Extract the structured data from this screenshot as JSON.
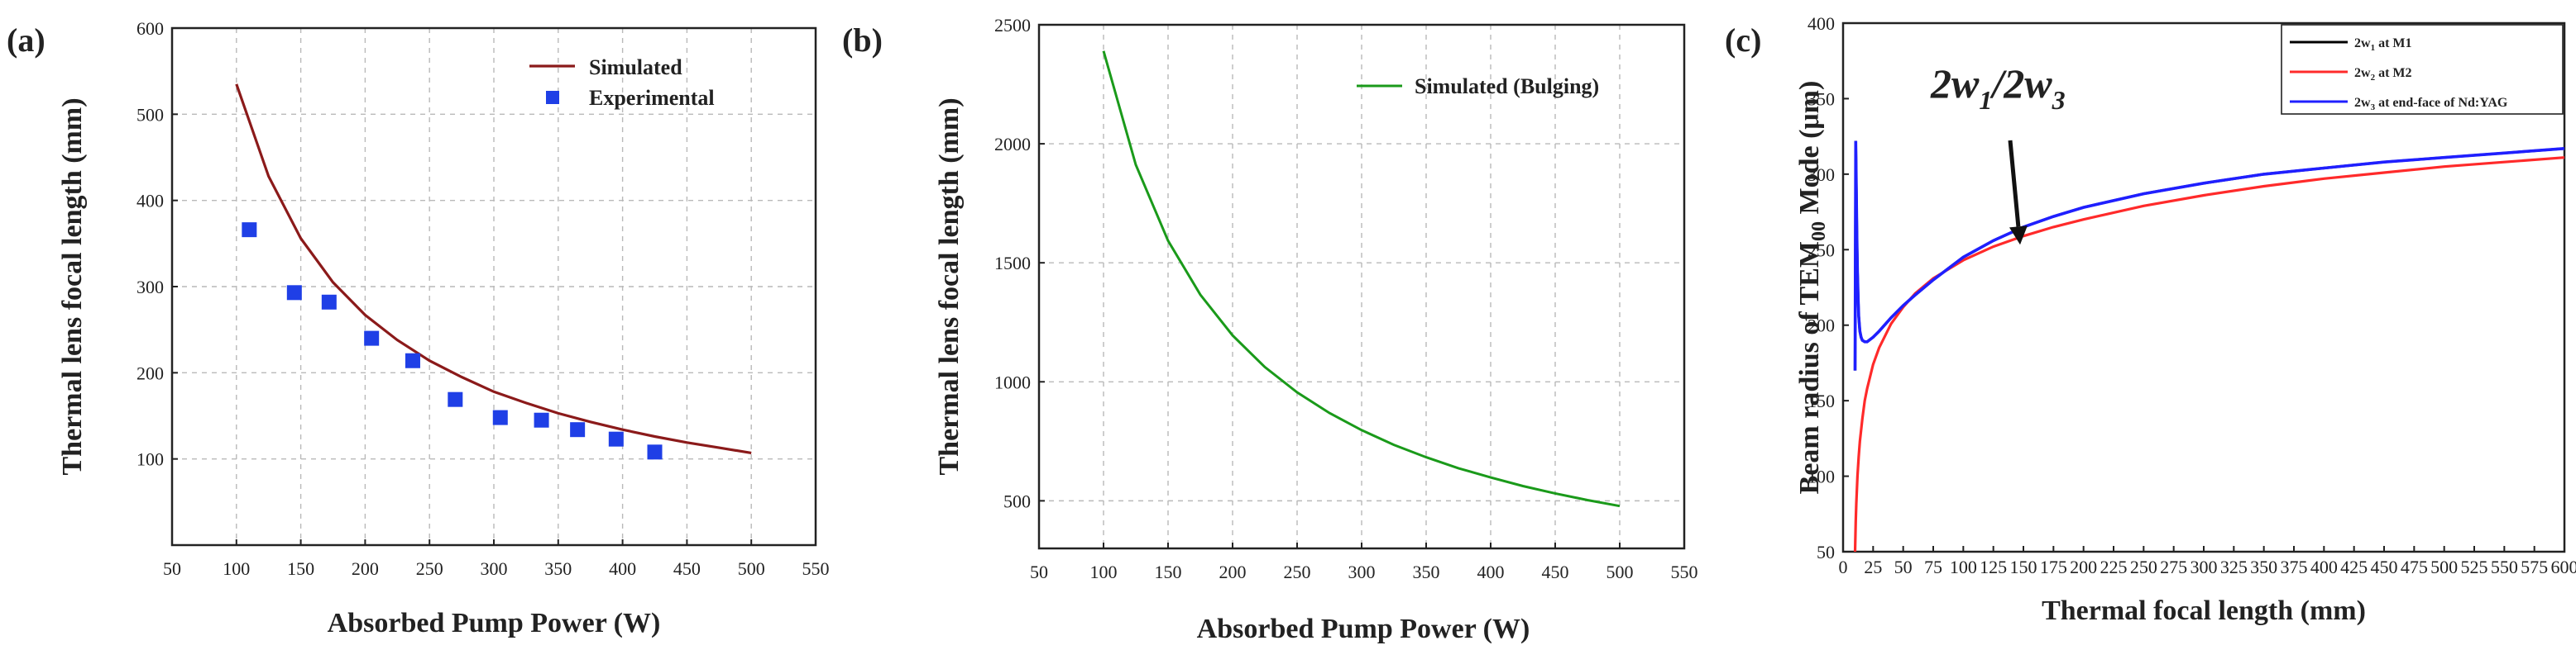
{
  "chart_data": [
    {
      "type": "line",
      "panel_label": "(a)",
      "xlabel": "Absorbed Pump Power (W)",
      "ylabel": "Thermal lens focal length (mm)",
      "xlim": [
        50,
        550
      ],
      "ylim": [
        0,
        600
      ],
      "xticks": [
        "50",
        "100",
        "150",
        "200",
        "250",
        "300",
        "350",
        "400",
        "450",
        "500",
        "550"
      ],
      "yticks": [
        "100",
        "200",
        "300",
        "400",
        "500",
        "600"
      ],
      "grid": true,
      "legend_position": "top-right",
      "series": [
        {
          "name": "Simulated",
          "kind": "line",
          "color": "#8b1a1a",
          "x": [
            100,
            125,
            150,
            175,
            200,
            225,
            250,
            275,
            300,
            325,
            350,
            375,
            400,
            425,
            450,
            475,
            500
          ],
          "y": [
            535,
            428,
            356,
            305,
            267,
            238,
            214,
            195,
            178,
            165,
            153,
            143,
            134,
            126,
            119,
            113,
            107
          ]
        },
        {
          "name": "Experimental",
          "kind": "scatter",
          "color": "#1f3fe6",
          "marker": "square",
          "x": [
            110,
            145,
            172,
            205,
            237,
            270,
            305,
            337,
            365,
            395,
            425
          ],
          "y": [
            366,
            293,
            282,
            240,
            214,
            169,
            148,
            145,
            134,
            123,
            108
          ]
        }
      ]
    },
    {
      "type": "line",
      "panel_label": "(b)",
      "xlabel": "Absorbed Pump Power (W)",
      "ylabel": "Thermal lens focal length (mm)",
      "xlim": [
        50,
        550
      ],
      "ylim": [
        300,
        2500
      ],
      "xticks": [
        "50",
        "100",
        "150",
        "200",
        "250",
        "300",
        "350",
        "400",
        "450",
        "500",
        "550"
      ],
      "yticks": [
        "500",
        "1000",
        "1500",
        "2000",
        "2500"
      ],
      "grid": true,
      "legend_position": "top-right",
      "series": [
        {
          "name": "Simulated (Bulging)",
          "kind": "line",
          "color": "#1a9a1a",
          "x": [
            100,
            125,
            150,
            175,
            200,
            225,
            250,
            275,
            300,
            325,
            350,
            375,
            400,
            425,
            450,
            475,
            500
          ],
          "y": [
            2390,
            1912,
            1593,
            1366,
            1195,
            1062,
            956,
            869,
            797,
            735,
            683,
            637,
            598,
            562,
            531,
            503,
            478
          ]
        }
      ]
    },
    {
      "type": "line",
      "panel_label": "(c)",
      "xlabel": "Thermal focal length (mm)",
      "ylabel_parts": {
        "pre": "Beam radius of TEM",
        "sub": "00",
        "post": " Mode (μm)"
      },
      "xlim": [
        0,
        600
      ],
      "ylim": [
        50,
        400
      ],
      "xticks": [
        "0",
        "25",
        "50",
        "75",
        "100",
        "125",
        "150",
        "175",
        "200",
        "225",
        "250",
        "275",
        "300",
        "325",
        "350",
        "375",
        "400",
        "425",
        "450",
        "475",
        "500",
        "525",
        "550",
        "575",
        "600"
      ],
      "yticks": [
        "50",
        "100",
        "150",
        "200",
        "250",
        "300",
        "350",
        "400"
      ],
      "grid": false,
      "legend_position": "top-right",
      "annotation": {
        "w": "2w",
        "s1": "1",
        "mid": "/2w",
        "s3": "3",
        "arrow_to": [
          150,
          250
        ]
      },
      "series": [
        {
          "name": "2w1 at M1",
          "legend_parts": {
            "pre": "2w",
            "sub": "1",
            "post": " at M1"
          },
          "color": "#000000",
          "x": [
            10,
            10.5,
            11,
            11.5,
            12,
            12.5,
            13,
            14,
            15,
            16,
            18,
            20,
            25,
            30,
            40,
            50,
            60,
            75,
            100,
            125,
            150,
            175,
            200,
            250,
            300,
            350,
            400,
            450,
            500,
            550,
            600
          ],
          "y": [
            170,
            322,
            290,
            258,
            235,
            218,
            206,
            196,
            192,
            190,
            189,
            189,
            192,
            196,
            205,
            213,
            220,
            230,
            245,
            256,
            265,
            272,
            278,
            287,
            294,
            300,
            304,
            308,
            311,
            314,
            317
          ]
        },
        {
          "name": "2w2 at M2",
          "legend_parts": {
            "pre": "2w",
            "sub": "2",
            "post": " at M2"
          },
          "color": "#ff2a2a",
          "x": [
            10,
            10.5,
            11,
            12,
            13,
            14,
            16,
            18,
            20,
            25,
            30,
            40,
            50,
            60,
            75,
            100,
            125,
            150,
            175,
            200,
            250,
            300,
            350,
            400,
            450,
            500,
            550,
            600
          ],
          "y": [
            50,
            70,
            82,
            100,
            113,
            123,
            138,
            150,
            158,
            174,
            185,
            201,
            212,
            221,
            231,
            243,
            252,
            259,
            265,
            270,
            279,
            286,
            292,
            297,
            301,
            305,
            308,
            311
          ]
        },
        {
          "name": "2w3 at end-face of Nd:YAG",
          "legend_parts": {
            "pre": "2w",
            "sub": "3",
            "post": " at end-face of Nd:YAG"
          },
          "color": "#1f1fff",
          "x": [
            10,
            10.5,
            11,
            11.5,
            12,
            12.5,
            13,
            14,
            15,
            16,
            18,
            20,
            25,
            30,
            40,
            50,
            60,
            75,
            100,
            125,
            150,
            175,
            200,
            250,
            300,
            350,
            400,
            450,
            500,
            550,
            600
          ],
          "y": [
            170,
            322,
            290,
            258,
            235,
            218,
            206,
            196,
            192,
            190,
            189,
            189,
            192,
            196,
            205,
            213,
            220,
            230,
            245,
            256,
            265,
            272,
            278,
            287,
            294,
            300,
            304,
            308,
            311,
            314,
            317
          ]
        }
      ]
    }
  ]
}
